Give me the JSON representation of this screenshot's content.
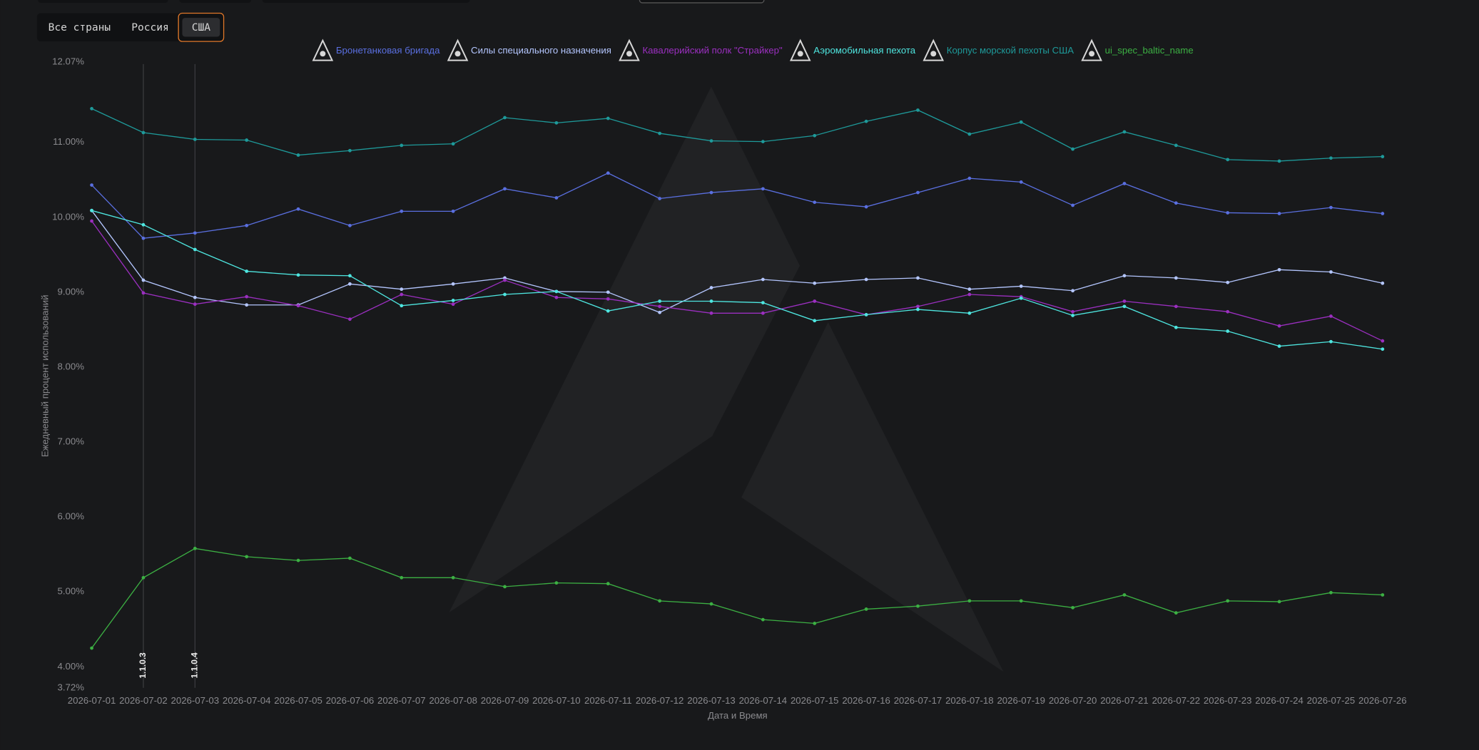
{
  "tabs": [
    "Все страны",
    "Россия",
    "США"
  ],
  "active_tab": 2,
  "chart_data": {
    "type": "line",
    "y_label": "Ежедневный процент использований",
    "x_label": "Дата и Время",
    "categories": [
      "2026-07-01",
      "2026-07-02",
      "2026-07-03",
      "2026-07-04",
      "2026-07-05",
      "2026-07-06",
      "2026-07-07",
      "2026-07-08",
      "2026-07-09",
      "2026-07-10",
      "2026-07-11",
      "2026-07-12",
      "2026-07-13",
      "2026-07-14",
      "2026-07-15",
      "2026-07-16",
      "2026-07-17",
      "2026-07-18",
      "2026-07-19",
      "2026-07-20",
      "2026-07-21",
      "2026-07-22",
      "2026-07-23",
      "2026-07-24",
      "2026-07-25",
      "2026-07-26"
    ],
    "series": [
      {
        "name": "Бронетанковая бригада",
        "color": "#5a6fe0",
        "values": [
          10.43,
          9.72,
          9.79,
          9.89,
          10.11,
          9.89,
          10.08,
          10.08,
          10.38,
          10.26,
          10.59,
          10.25,
          10.33,
          10.38,
          10.2,
          10.14,
          10.33,
          10.52,
          10.47,
          10.16,
          10.45,
          10.19,
          10.06,
          10.05,
          10.13,
          10.05
        ]
      },
      {
        "name": "Силы специального назначения",
        "color": "#b4c6ff",
        "values": [
          10.09,
          9.16,
          8.93,
          8.83,
          8.83,
          9.11,
          9.04,
          9.11,
          9.19,
          9.01,
          9.0,
          8.73,
          9.06,
          9.17,
          9.12,
          9.17,
          9.19,
          9.04,
          9.08,
          9.02,
          9.22,
          9.19,
          9.13,
          9.3,
          9.27,
          9.12
        ]
      },
      {
        "name": "Кавалерийский полк \"Страйкер\"",
        "color": "#9b2fc0",
        "values": [
          9.95,
          8.99,
          8.84,
          8.94,
          8.82,
          8.64,
          8.97,
          8.84,
          9.16,
          8.93,
          8.91,
          8.81,
          8.72,
          8.72,
          8.88,
          8.7,
          8.81,
          8.97,
          8.94,
          8.74,
          8.88,
          8.81,
          8.74,
          8.55,
          8.68,
          8.35
        ]
      },
      {
        "name": "Аэромобильная пехота",
        "color": "#4ee6e0",
        "values": [
          10.09,
          9.9,
          9.57,
          9.28,
          9.23,
          9.22,
          8.82,
          8.89,
          8.97,
          9.01,
          8.75,
          8.88,
          8.88,
          8.86,
          8.62,
          8.7,
          8.77,
          8.72,
          8.92,
          8.69,
          8.81,
          8.53,
          8.48,
          8.28,
          8.34,
          8.24
        ]
      },
      {
        "name": "Корпус морской пехоты США",
        "color": "#1e9a9a",
        "values": [
          11.45,
          11.13,
          11.04,
          11.03,
          10.83,
          10.89,
          10.96,
          10.98,
          11.33,
          11.26,
          11.32,
          11.12,
          11.02,
          11.01,
          11.09,
          11.28,
          11.43,
          11.11,
          11.27,
          10.91,
          11.14,
          10.96,
          10.77,
          10.75,
          10.79,
          10.81
        ]
      },
      {
        "name": "ui_spec_baltic_name",
        "color": "#3cb043",
        "values": [
          4.25,
          5.19,
          5.58,
          5.47,
          5.42,
          5.45,
          5.19,
          5.19,
          5.07,
          5.12,
          5.11,
          4.88,
          4.84,
          4.63,
          4.58,
          4.77,
          4.81,
          4.88,
          4.88,
          4.79,
          4.96,
          4.72,
          4.88,
          4.87,
          4.99,
          4.96
        ]
      }
    ],
    "ylim": [
      3.72,
      12.07
    ],
    "yticks": [
      {
        "value": 3.72,
        "label": "3.72%"
      },
      {
        "value": 4,
        "label": "4.00%"
      },
      {
        "value": 5,
        "label": "5.00%"
      },
      {
        "value": 6,
        "label": "6.00%"
      },
      {
        "value": 7,
        "label": "7.00%"
      },
      {
        "value": 8,
        "label": "8.00%"
      },
      {
        "value": 9,
        "label": "9.00%"
      },
      {
        "value": 10,
        "label": "10.00%"
      },
      {
        "value": 11,
        "label": "11.00%"
      },
      {
        "value": 12.07,
        "label": "12.07%"
      }
    ],
    "grid": false,
    "annotations": [
      {
        "x": "2026-07-02",
        "label": "1.1.0.3"
      },
      {
        "x": "2026-07-03",
        "label": "1.1.0.4"
      }
    ]
  }
}
